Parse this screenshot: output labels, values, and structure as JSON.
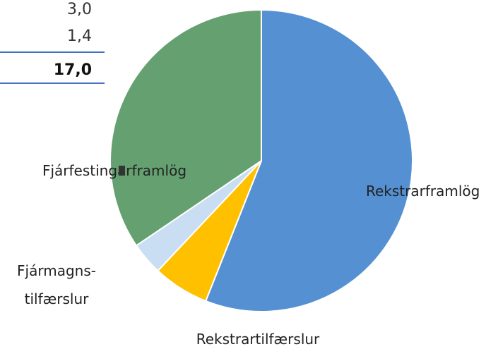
{
  "table": {
    "values": [
      "3,0",
      "1,4",
      "17,0"
    ]
  },
  "chart_data": {
    "type": "pie",
    "categories": [
      "Rekstrarframlög",
      "Rekstrartilfærslur",
      "Fjármagns-\ntilfærslur",
      "Fjárfestingarframlög"
    ],
    "values": [
      56,
      6,
      3.5,
      34.5
    ],
    "colors": [
      "#5590d2",
      "#ffc000",
      "#c9ddf3",
      "#64a070"
    ]
  }
}
